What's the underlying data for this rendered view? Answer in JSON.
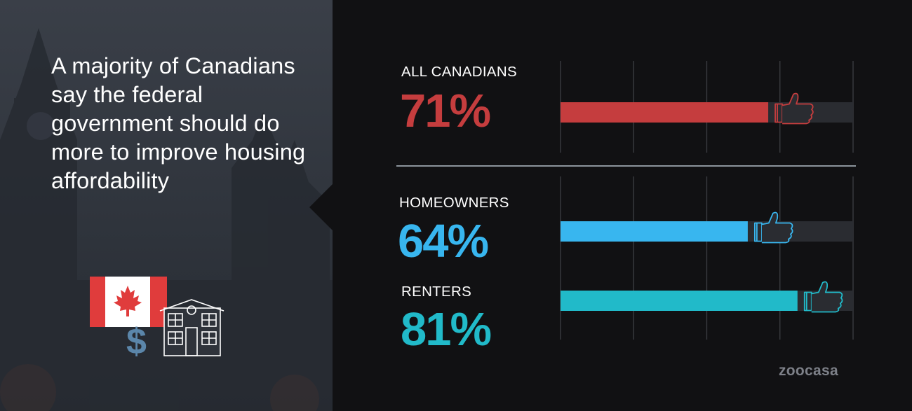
{
  "headline": "A majority of Canadians say the federal government should do more to improve housing affordability",
  "brand": "zoocasa",
  "icons": {
    "flag": "canada-flag-icon",
    "dollar": "$",
    "house": "house-icon",
    "thumb": "thumbs-up-icon"
  },
  "chart_data": {
    "type": "bar",
    "orientation": "horizontal",
    "title": "",
    "xlabel": "",
    "ylabel": "",
    "xlim": [
      0,
      100
    ],
    "grid": true,
    "categories": [
      "ALL CANADIANS",
      "HOMEOWNERS",
      "RENTERS"
    ],
    "values": [
      71,
      64,
      81
    ],
    "value_labels": [
      "71%",
      "64%",
      "81%"
    ],
    "colors": [
      "#c53d3e",
      "#38b6ef",
      "#21bac9"
    ],
    "track_color": "#2a2c31",
    "grid_color": "#3d3f44",
    "divider_color": "#8c949c"
  }
}
